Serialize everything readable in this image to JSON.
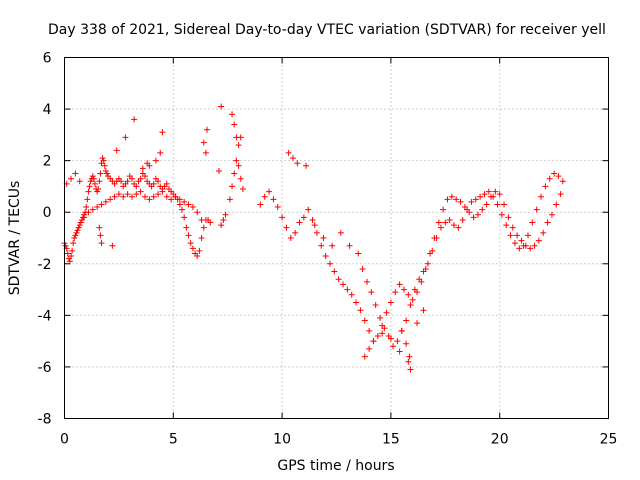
{
  "chart_data": {
    "type": "scatter",
    "title": "Day 338 of 2021, Sidereal Day-to-day VTEC variation (SDTVAR) for receiver yell",
    "xlabel": "GPS time / hours",
    "ylabel": "SDTVAR / TECUs",
    "xlim": [
      0,
      25
    ],
    "ylim": [
      -8,
      6
    ],
    "xticks": [
      0,
      5,
      10,
      15,
      20,
      25
    ],
    "yticks": [
      -8,
      -6,
      -4,
      -2,
      0,
      2,
      4,
      6
    ],
    "xtick_labels": [
      "0",
      "5",
      "10",
      "15",
      "20",
      "25"
    ],
    "ytick_labels": [
      "-8",
      "-6",
      "-4",
      "-2",
      "0",
      "2",
      "4",
      "6"
    ],
    "grid": true,
    "legend": "none",
    "marker": "+",
    "series": [
      {
        "name": "yell",
        "color": "#ff0000",
        "trace_note": "approximate representative samples of the dense trace",
        "x": [
          0.0,
          0.05,
          0.1,
          0.15,
          0.2,
          0.25,
          0.3,
          0.35,
          0.4,
          0.45,
          0.5,
          0.55,
          0.6,
          0.65,
          0.7,
          0.75,
          0.8,
          0.85,
          0.9,
          0.95,
          1.0,
          1.05,
          1.1,
          1.15,
          1.2,
          1.25,
          1.3,
          1.35,
          1.4,
          1.45,
          1.5,
          1.55,
          1.6,
          1.65,
          1.7,
          1.75,
          1.8,
          1.85,
          1.9,
          1.95,
          2.0,
          2.1,
          2.2,
          2.3,
          2.4,
          2.5,
          2.6,
          2.7,
          2.8,
          2.9,
          3.0,
          3.1,
          3.2,
          3.3,
          3.4,
          3.5,
          3.6,
          3.7,
          3.8,
          3.9,
          4.0,
          4.1,
          4.2,
          4.3,
          4.4,
          4.5,
          4.6,
          4.7,
          4.8,
          4.9,
          5.0,
          5.1,
          5.2,
          5.3,
          5.4,
          5.5,
          5.6,
          5.7,
          5.8,
          5.9,
          6.0,
          6.1,
          6.2,
          6.3,
          6.4,
          6.5,
          6.6,
          6.7,
          7.2,
          7.3,
          7.4,
          7.6,
          7.7,
          7.8,
          7.9,
          8.0,
          8.1,
          8.2,
          9.0,
          9.2,
          9.4,
          9.6,
          9.8,
          10.0,
          10.2,
          10.4,
          10.6,
          10.8,
          11.0,
          11.2,
          11.4,
          11.6,
          11.8,
          12.0,
          12.2,
          12.4,
          12.6,
          12.8,
          13.0,
          13.2,
          13.4,
          13.6,
          13.8,
          14.0,
          14.2,
          14.4,
          14.6,
          14.8,
          15.0,
          15.2,
          15.4,
          15.6,
          15.8,
          16.0,
          16.2,
          16.4,
          16.6,
          16.8,
          17.0,
          17.2,
          17.4,
          17.6,
          17.8,
          18.0,
          18.2,
          18.4,
          18.6,
          18.8,
          19.0,
          19.2,
          19.4,
          19.6,
          19.8,
          20.0,
          20.2,
          20.4,
          20.6,
          20.8,
          21.0,
          21.2,
          21.4,
          21.6,
          21.8,
          22.0,
          22.2,
          22.4,
          22.6,
          22.8,
          0.1,
          0.3,
          0.5,
          0.7,
          0.9,
          1.1,
          1.3,
          1.5,
          1.7,
          1.9,
          2.1,
          2.3,
          2.5,
          2.7,
          2.9,
          3.1,
          3.3,
          3.5,
          3.7,
          3.9,
          4.1,
          4.3,
          4.5,
          4.7,
          4.9,
          5.1,
          5.3,
          5.5,
          5.7,
          5.9,
          6.1,
          6.3,
          1.6,
          1.65,
          1.7,
          2.2,
          2.4,
          2.8,
          3.2,
          3.6,
          3.8,
          3.9,
          4.2,
          4.4,
          4.5,
          6.4,
          6.5,
          6.55,
          7.1,
          7.2,
          7.7,
          7.8,
          7.9,
          8.0,
          8.1,
          10.3,
          10.5,
          10.7,
          11.1,
          11.5,
          11.9,
          12.3,
          12.7,
          13.1,
          13.5,
          13.7,
          13.9,
          14.1,
          14.3,
          14.5,
          14.7,
          14.9,
          15.1,
          15.3,
          15.5,
          15.7,
          15.9,
          16.1,
          16.3,
          16.5,
          16.7,
          16.9,
          17.1,
          17.3,
          17.5,
          17.7,
          17.9,
          18.1,
          18.3,
          18.5,
          18.7,
          18.9,
          19.1,
          19.3,
          19.5,
          19.7,
          19.9,
          20.1,
          20.3,
          20.5,
          20.7,
          20.9,
          21.1,
          21.3,
          21.5,
          21.7,
          21.9,
          22.1,
          22.3,
          22.5,
          22.7,
          22.9,
          13.8,
          14.0,
          14.2,
          14.6,
          15.0,
          15.4,
          15.8,
          15.9,
          16.2,
          16.5,
          15.5,
          15.7,
          15.85
        ],
        "y": [
          -1.2,
          -1.3,
          -1.4,
          -1.6,
          -1.8,
          -1.9,
          -1.7,
          -1.5,
          -1.2,
          -1.0,
          -0.9,
          -0.8,
          -0.7,
          -0.6,
          -0.5,
          -0.4,
          -0.3,
          -0.2,
          -0.1,
          0.0,
          0.2,
          0.5,
          0.8,
          1.0,
          1.2,
          1.3,
          1.4,
          1.3,
          1.1,
          0.9,
          0.8,
          0.9,
          1.2,
          1.5,
          1.9,
          2.1,
          2.0,
          1.8,
          1.6,
          1.5,
          1.4,
          1.3,
          1.2,
          1.1,
          1.2,
          1.3,
          1.2,
          1.0,
          1.1,
          1.2,
          1.4,
          1.3,
          1.1,
          1.0,
          1.2,
          1.3,
          1.5,
          1.4,
          1.2,
          1.1,
          1.0,
          1.1,
          1.3,
          1.2,
          1.0,
          0.9,
          1.0,
          1.1,
          0.9,
          0.8,
          0.7,
          0.6,
          0.5,
          0.3,
          0.1,
          -0.2,
          -0.6,
          -0.9,
          -1.2,
          -1.4,
          -1.6,
          -1.7,
          -1.5,
          -1.0,
          -0.6,
          -0.3,
          -0.3,
          -0.4,
          -0.5,
          -0.3,
          -0.1,
          0.5,
          1.0,
          1.5,
          2.0,
          1.8,
          1.3,
          0.9,
          0.3,
          0.6,
          0.8,
          0.5,
          0.2,
          -0.2,
          -0.6,
          -1.0,
          -0.8,
          -0.4,
          -0.2,
          0.1,
          -0.3,
          -0.8,
          -1.3,
          -1.7,
          -2.0,
          -2.3,
          -2.6,
          -2.8,
          -3.0,
          -3.2,
          -3.5,
          -3.8,
          -4.2,
          -4.6,
          -5.0,
          -4.8,
          -4.4,
          -3.9,
          -3.5,
          -3.1,
          -2.8,
          -3.0,
          -3.2,
          -3.4,
          -3.1,
          -2.7,
          -2.2,
          -1.6,
          -1.0,
          -0.4,
          0.1,
          0.5,
          0.6,
          0.5,
          0.4,
          0.2,
          0.0,
          -0.2,
          -0.1,
          0.1,
          0.3,
          0.6,
          0.8,
          0.7,
          0.3,
          -0.2,
          -0.6,
          -0.9,
          -1.1,
          -1.3,
          -1.4,
          -1.3,
          -1.1,
          -0.8,
          -0.4,
          -0.1,
          0.3,
          0.7,
          1.1,
          1.3,
          1.5,
          1.2,
          -0.2,
          0.0,
          0.1,
          0.2,
          0.3,
          0.4,
          0.5,
          0.6,
          0.7,
          0.6,
          0.7,
          0.6,
          0.7,
          0.8,
          0.6,
          0.5,
          0.6,
          0.7,
          0.8,
          0.6,
          0.5,
          0.6,
          0.5,
          0.4,
          0.3,
          0.2,
          0.0,
          -0.3,
          -0.6,
          -0.9,
          -1.2,
          -1.3,
          2.4,
          2.9,
          3.6,
          1.7,
          1.9,
          1.8,
          2.0,
          2.3,
          3.1,
          2.7,
          2.3,
          3.2,
          1.6,
          4.1,
          3.8,
          3.4,
          2.9,
          2.6,
          2.9,
          2.3,
          2.1,
          1.9,
          1.8,
          -0.5,
          -1.0,
          -1.3,
          -0.8,
          -1.3,
          -1.6,
          -2.2,
          -2.7,
          -3.1,
          -3.6,
          -4.1,
          -4.5,
          -4.8,
          -5.2,
          -5.0,
          -4.6,
          -4.2,
          -3.6,
          -3.0,
          -2.6,
          -2.3,
          -2.0,
          -1.5,
          -1.0,
          -0.6,
          -0.4,
          -0.3,
          -0.5,
          -0.6,
          -0.3,
          0.1,
          0.4,
          0.5,
          0.6,
          0.7,
          0.8,
          0.6,
          0.3,
          -0.1,
          -0.5,
          -0.9,
          -1.2,
          -1.4,
          -1.3,
          -0.9,
          -0.4,
          0.1,
          0.6,
          1.0,
          1.3,
          1.5,
          1.4,
          1.2,
          -5.6,
          -5.3,
          -5.0,
          -4.7,
          -4.9,
          -5.4,
          -5.8,
          -6.1,
          -4.3,
          -3.8,
          -4.6,
          -5.1,
          -5.6
        ]
      }
    ]
  }
}
